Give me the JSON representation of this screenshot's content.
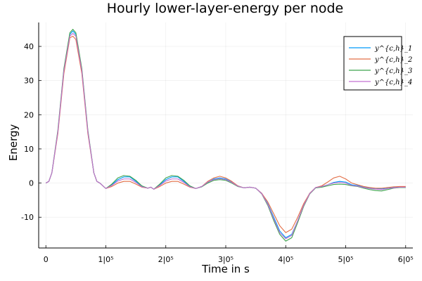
{
  "chart_data": {
    "type": "line",
    "title": "Hourly lower-layer-energy per node",
    "xlabel": "Time in s",
    "ylabel": "Energy",
    "xlim": [
      -12000,
      612000
    ],
    "ylim": [
      -19,
      47
    ],
    "grid": true,
    "legend_position": "top-right",
    "x_ticks": [
      {
        "value": 0,
        "label": "0"
      },
      {
        "value": 100000,
        "label": "1|0⁵"
      },
      {
        "value": 200000,
        "label": "2|0⁵"
      },
      {
        "value": 300000,
        "label": "3|0⁵"
      },
      {
        "value": 400000,
        "label": "4|0⁵"
      },
      {
        "value": 500000,
        "label": "5|0⁵"
      },
      {
        "value": 600000,
        "label": "6|0⁵"
      }
    ],
    "y_ticks": [
      {
        "value": 40,
        "label": "40"
      },
      {
        "value": 30,
        "label": "30"
      },
      {
        "value": 20,
        "label": "20"
      },
      {
        "value": 10,
        "label": "10"
      },
      {
        "value": 0,
        "label": "0"
      },
      {
        "value": -10,
        "label": "-10"
      }
    ],
    "x": [
      0,
      5000,
      10000,
      20000,
      30000,
      40000,
      45000,
      50000,
      60000,
      70000,
      80000,
      85000,
      90000,
      100000,
      110000,
      120000,
      130000,
      140000,
      150000,
      160000,
      170000,
      175000,
      180000,
      190000,
      200000,
      210000,
      220000,
      230000,
      240000,
      250000,
      260000,
      270000,
      280000,
      290000,
      300000,
      310000,
      320000,
      330000,
      340000,
      350000,
      360000,
      370000,
      380000,
      390000,
      400000,
      410000,
      420000,
      430000,
      440000,
      450000,
      460000,
      470000,
      480000,
      490000,
      500000,
      510000,
      520000,
      530000,
      540000,
      550000,
      560000,
      570000,
      580000,
      590000,
      600000
    ],
    "series": [
      {
        "name": "y^{c,h}_1",
        "color": "#009AFA",
        "values": [
          0,
          0.5,
          3,
          15,
          33,
          43.5,
          44.5,
          43.5,
          33,
          15,
          3,
          0.5,
          0,
          -1.6,
          -0.5,
          1,
          1.8,
          1.8,
          0.5,
          -1,
          -1.5,
          -1.2,
          -1.8,
          -0.5,
          1,
          1.8,
          1.8,
          0.5,
          -1,
          -1.6,
          -1,
          0.2,
          1.2,
          1.5,
          1.2,
          0.3,
          -0.8,
          -1.4,
          -1.2,
          -1.5,
          -3,
          -6,
          -10,
          -14,
          -16,
          -15,
          -11,
          -6.5,
          -3,
          -1.3,
          -1,
          -0.5,
          0.2,
          0.5,
          0.3,
          -0.5,
          -0.7,
          -1.2,
          -1.5,
          -1.6,
          -1.7,
          -1.5,
          -1.3,
          -1.2,
          -1.2
        ]
      },
      {
        "name": "y^{c,h}_2",
        "color": "#E36F47",
        "values": [
          0,
          0.5,
          3,
          14.5,
          32,
          42.5,
          43,
          42,
          32,
          14.5,
          3,
          0.5,
          0,
          -1.6,
          -1,
          0,
          0.5,
          0.5,
          -0.3,
          -1.2,
          -1.5,
          -1.2,
          -1.8,
          -1,
          0,
          0.5,
          0.5,
          -0.3,
          -1.2,
          -1.6,
          -1,
          0.5,
          1.5,
          2,
          1.5,
          0.5,
          -0.8,
          -1.4,
          -1.2,
          -1.5,
          -3,
          -5.5,
          -9,
          -12.5,
          -14.5,
          -13.5,
          -10,
          -6,
          -3,
          -1.3,
          -0.8,
          0.3,
          1.5,
          2,
          1.2,
          0,
          -0.5,
          -1,
          -1.3,
          -1.5,
          -1.5,
          -1.3,
          -1.1,
          -1,
          -1
        ]
      },
      {
        "name": "y^{c,h}_3",
        "color": "#3EA44E",
        "values": [
          0,
          0.5,
          3,
          15.5,
          33.5,
          44,
          45,
          44,
          33.5,
          15.5,
          3,
          0.5,
          0,
          -1.6,
          -0.3,
          1.5,
          2.2,
          2,
          0.8,
          -0.8,
          -1.5,
          -1.2,
          -1.8,
          -0.3,
          1.5,
          2.2,
          2,
          0.8,
          -0.8,
          -1.6,
          -1.1,
          0,
          0.8,
          1,
          0.8,
          0,
          -1,
          -1.4,
          -1.2,
          -1.5,
          -3.2,
          -6.5,
          -11,
          -15,
          -17,
          -16,
          -11.5,
          -6.8,
          -3.2,
          -1.4,
          -1.2,
          -0.8,
          -0.4,
          -0.3,
          -0.4,
          -0.8,
          -1,
          -1.5,
          -1.9,
          -2.2,
          -2.3,
          -1.9,
          -1.5,
          -1.3,
          -1.3
        ]
      },
      {
        "name": "y^{c,h}_4",
        "color": "#C271D2",
        "values": [
          0,
          0.5,
          3,
          15,
          32.8,
          43,
          43.8,
          43,
          32.8,
          15,
          3,
          0.5,
          0,
          -1.6,
          -0.7,
          0.6,
          1.2,
          1.2,
          0.2,
          -1.1,
          -1.5,
          -1.2,
          -1.8,
          -0.7,
          0.6,
          1.2,
          1.2,
          0.2,
          -1.1,
          -1.6,
          -1,
          0.3,
          1,
          1.3,
          1,
          0.2,
          -0.9,
          -1.4,
          -1.2,
          -1.5,
          -3.1,
          -6.2,
          -10.5,
          -14.5,
          -16.3,
          -15.3,
          -11,
          -6.5,
          -3.1,
          -1.3,
          -1,
          -0.5,
          0,
          0.2,
          0,
          -0.7,
          -0.9,
          -1.3,
          -1.6,
          -1.8,
          -1.9,
          -1.6,
          -1.4,
          -1.2,
          -1.2
        ]
      }
    ]
  }
}
